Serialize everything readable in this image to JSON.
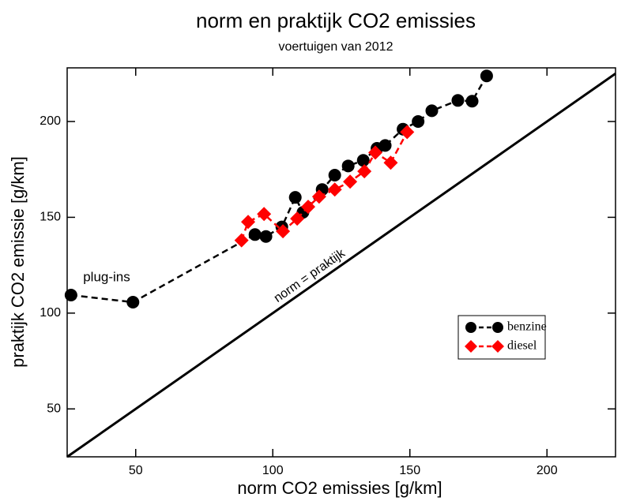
{
  "chart_data": {
    "type": "line",
    "title": "norm en praktijk CO2 emissies",
    "subtitle": "voertuigen van 2012",
    "x_label": "norm CO2 emissies [g/km]",
    "y_label": "praktijk CO2 emissie [g/km]",
    "annotations": [
      "plug-ins",
      "norm = praktijk"
    ],
    "xlim": [
      25,
      225
    ],
    "ylim": [
      25,
      228
    ],
    "xticks": [
      50,
      100,
      150,
      200
    ],
    "yticks": [
      50,
      100,
      150,
      200
    ],
    "legend": "right",
    "series": [
      {
        "name": "benzine",
        "color": "#000000",
        "marker": "circle",
        "x": [
          26.4,
          49,
          93.5,
          97.5,
          103.3,
          108.2,
          111,
          118,
          122.6,
          127.5,
          133,
          138,
          141,
          147.5,
          153,
          158,
          167.5,
          172.7,
          178
        ],
        "values": [
          109.4,
          105.7,
          141,
          140,
          145,
          160.4,
          152.6,
          164.5,
          172,
          176.8,
          179.7,
          186,
          187.5,
          196,
          200,
          205.6,
          211,
          210.6,
          223.8
        ]
      },
      {
        "name": "diesel",
        "color": "#ff0000",
        "marker": "diamond",
        "x": [
          88.6,
          91,
          96.8,
          103.7,
          108.9,
          112.9,
          116.9,
          122.6,
          128.2,
          133.4,
          137.4,
          143,
          149
        ],
        "values": [
          138,
          147.6,
          151.7,
          142.7,
          149.3,
          155.5,
          160.8,
          164.5,
          168.6,
          174,
          183.8,
          178.5,
          194.5
        ]
      }
    ]
  }
}
